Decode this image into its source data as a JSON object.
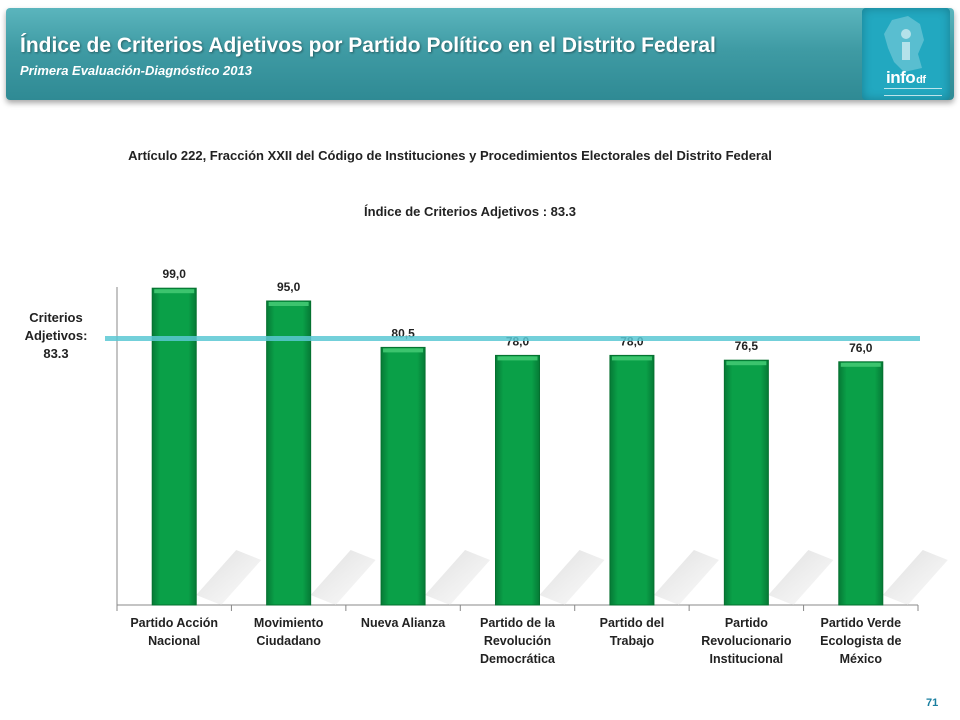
{
  "header": {
    "title": "Índice de Criterios Adjetivos por Partido Político en el Distrito Federal",
    "subtitle": "Primera Evaluación-Diagnóstico 2013",
    "logo_text": "info",
    "logo_suffix": "df",
    "logo_icon": "infodf-logo-icon",
    "background_color": "#3f9ba4"
  },
  "article": "Artículo 222, Fracción XXII del Código de Instituciones y Procedimientos Electorales del Distrito Federal",
  "reference": {
    "label_lines": [
      "Criterios",
      "Adjetivos:",
      "83.3"
    ],
    "value": 83.3,
    "color": "#5bc8d4"
  },
  "page_number": "71",
  "chart_data": {
    "type": "bar",
    "title": "Índice de Criterios Adjetivos : 83.3",
    "categories": [
      [
        "Partido Acción",
        "Nacional"
      ],
      [
        "Movimiento",
        "Ciudadano"
      ],
      [
        "Nueva Alianza"
      ],
      [
        "Partido de la",
        "Revolución",
        "Democrática"
      ],
      [
        "Partido del",
        "Trabajo"
      ],
      [
        "Partido",
        "Revolucionario",
        "Institucional"
      ],
      [
        "Partido Verde",
        "Ecologista de",
        "México"
      ]
    ],
    "values": [
      99.0,
      95.0,
      80.5,
      78.0,
      78.0,
      76.5,
      76.0
    ],
    "value_labels": [
      "99,0",
      "95,0",
      "80,5",
      "78,0",
      "78,0",
      "76,5",
      "76,0"
    ],
    "ylim": [
      0,
      100
    ],
    "bar_color": "#0aa048",
    "grid": false,
    "legend": "none"
  }
}
